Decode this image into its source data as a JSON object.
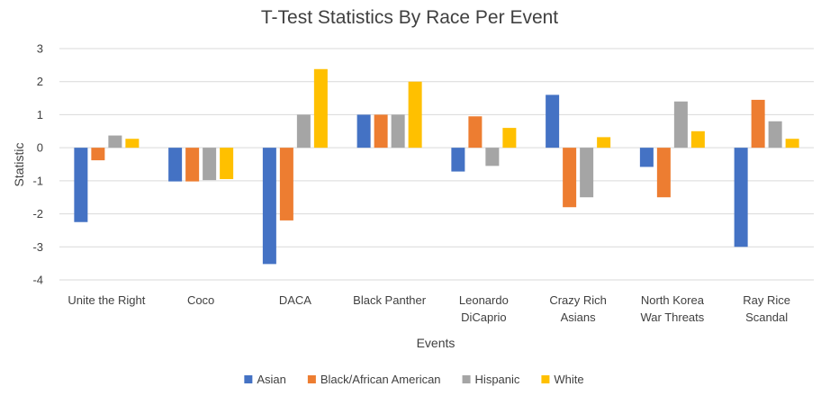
{
  "chart_data": {
    "type": "bar",
    "title": "T-Test Statistics By Race Per Event",
    "xlabel": "Events",
    "ylabel": "Statistic",
    "ylim": [
      -4,
      3
    ],
    "yticks": [
      -4,
      -3,
      -2,
      -1,
      0,
      1,
      2,
      3
    ],
    "ytick_labels": [
      "-4",
      "-3",
      "-2",
      "-1",
      "0",
      "1",
      "2",
      "3"
    ],
    "grid": true,
    "legend_position": "bottom",
    "categories": [
      [
        "Unite the Right"
      ],
      [
        "Coco"
      ],
      [
        "DACA"
      ],
      [
        "Black Panther"
      ],
      [
        "Leonardo",
        "DiCaprio"
      ],
      [
        "Crazy Rich",
        "Asians"
      ],
      [
        "North Korea",
        "War Threats"
      ],
      [
        "Ray Rice",
        "Scandal"
      ]
    ],
    "series": [
      {
        "name": "Asian",
        "color": "#4472c4",
        "values": [
          -2.25,
          -1.02,
          -3.52,
          1.0,
          -0.72,
          1.6,
          -0.58,
          -3.0
        ]
      },
      {
        "name": "Black/African American",
        "color": "#ed7d31",
        "values": [
          -0.38,
          -1.02,
          -2.2,
          1.0,
          0.95,
          -1.8,
          -1.5,
          1.45
        ]
      },
      {
        "name": "Hispanic",
        "color": "#a5a5a5",
        "values": [
          0.37,
          -0.98,
          1.0,
          1.0,
          -0.55,
          -1.5,
          1.4,
          0.8
        ]
      },
      {
        "name": "White",
        "color": "#ffc000",
        "values": [
          0.27,
          -0.95,
          2.38,
          2.0,
          0.6,
          0.32,
          0.5,
          0.27
        ]
      }
    ]
  }
}
